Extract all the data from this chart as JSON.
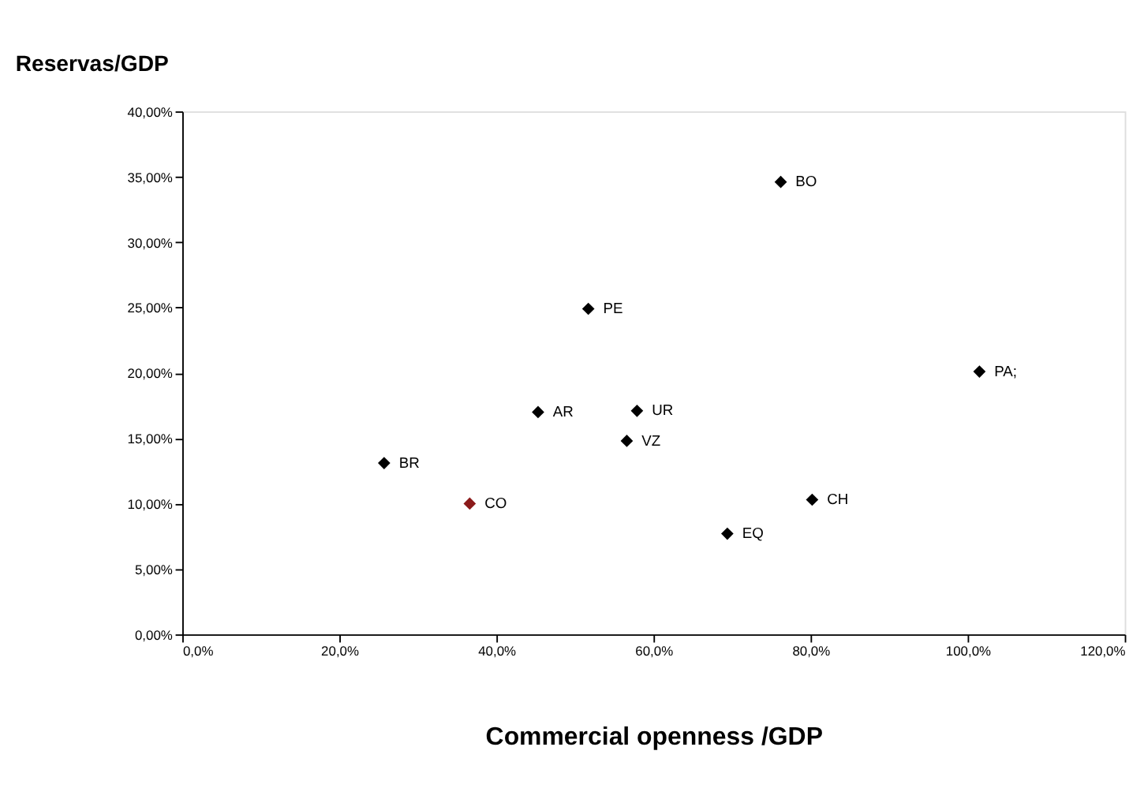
{
  "chart_data": {
    "type": "scatter",
    "title": "Reservas/GDP",
    "xlabel": "Commercial openness /GDP",
    "x": [
      25.7,
      36.6,
      45.3,
      51.7,
      57.9,
      56.6,
      76.2,
      101.5,
      80.2,
      69.4
    ],
    "series": [
      {
        "values": [
          13.1,
          10.0,
          17.0,
          24.9,
          17.1,
          14.8,
          34.6,
          20.1,
          10.3,
          7.7
        ],
        "colors": [
          "#000000",
          "#8b1a1a",
          "#000000",
          "#000000",
          "#000000",
          "#000000",
          "#000000",
          "#000000",
          "#000000",
          "#000000"
        ]
      }
    ],
    "annotations": [
      {
        "text": "BR",
        "x": 25.7,
        "y": 13.1
      },
      {
        "text": "CO",
        "x": 36.6,
        "y": 10.0
      },
      {
        "text": "AR",
        "x": 45.3,
        "y": 17.0
      },
      {
        "text": "PE",
        "x": 51.7,
        "y": 24.9
      },
      {
        "text": "UR",
        "x": 57.9,
        "y": 17.1
      },
      {
        "text": "VZ",
        "x": 56.6,
        "y": 14.8
      },
      {
        "text": "BO",
        "x": 76.2,
        "y": 34.6
      },
      {
        "text": "PA;",
        "x": 101.5,
        "y": 20.1
      },
      {
        "text": "CH",
        "x": 80.2,
        "y": 10.3
      },
      {
        "text": "EQ",
        "x": 69.4,
        "y": 7.7
      }
    ],
    "xlim": [
      0,
      120
    ],
    "ylim": [
      0,
      40
    ],
    "xticks": [
      {
        "value": 0,
        "label": "0,0%"
      },
      {
        "value": 20,
        "label": "20,0%"
      },
      {
        "value": 40,
        "label": "40,0%"
      },
      {
        "value": 60,
        "label": "60,0%"
      },
      {
        "value": 80,
        "label": "80,0%"
      },
      {
        "value": 100,
        "label": "100,0%"
      },
      {
        "value": 120,
        "label": "120,0%"
      }
    ],
    "yticks": [
      {
        "value": 0,
        "label": "0,00%"
      },
      {
        "value": 5,
        "label": "5,00%"
      },
      {
        "value": 10,
        "label": "10,00%"
      },
      {
        "value": 15,
        "label": "15,00%"
      },
      {
        "value": 20,
        "label": "20,00%"
      },
      {
        "value": 25,
        "label": "25,00%"
      },
      {
        "value": 30,
        "label": "30,00%"
      },
      {
        "value": 35,
        "label": "35,00%"
      },
      {
        "value": 40,
        "label": "40,00%"
      }
    ],
    "marker": "diamond",
    "grid": false
  }
}
